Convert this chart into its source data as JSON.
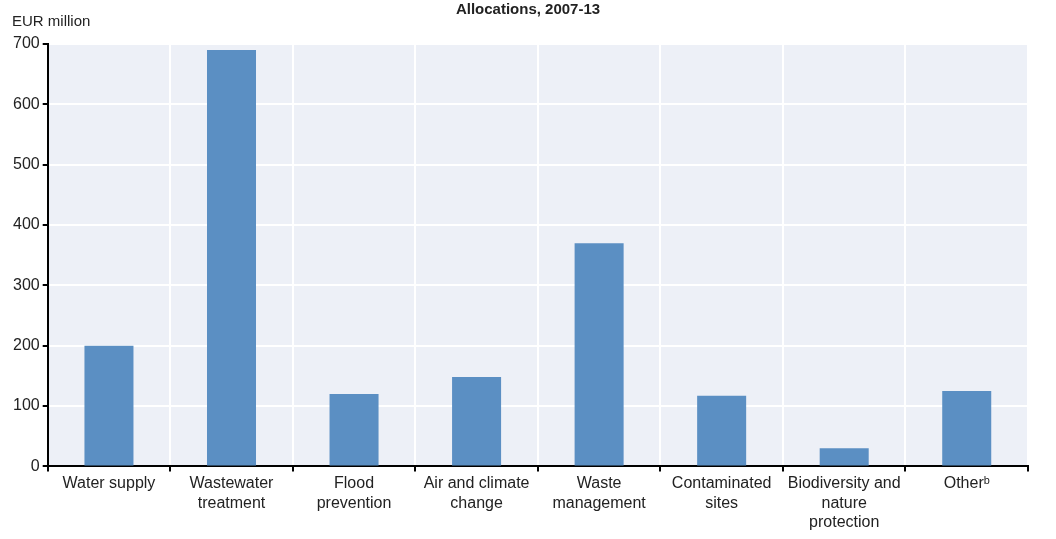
{
  "chart_data": {
    "type": "bar",
    "title": "Allocations, 2007-13",
    "ylabel": "EUR million",
    "categories": [
      "Water supply",
      "Wastewater treatment",
      "Flood prevention",
      "Air and climate change",
      "Waste management",
      "Contaminated sites",
      "Biodiversity and nature protection",
      "Otherᵇ"
    ],
    "values": [
      200,
      690,
      120,
      148,
      370,
      117,
      30,
      125
    ],
    "color": "#5b8fc3",
    "ylim": [
      0,
      700
    ],
    "yticks": [
      0,
      100,
      200,
      300,
      400,
      500,
      600,
      700
    ],
    "grid": true,
    "legend": false
  }
}
